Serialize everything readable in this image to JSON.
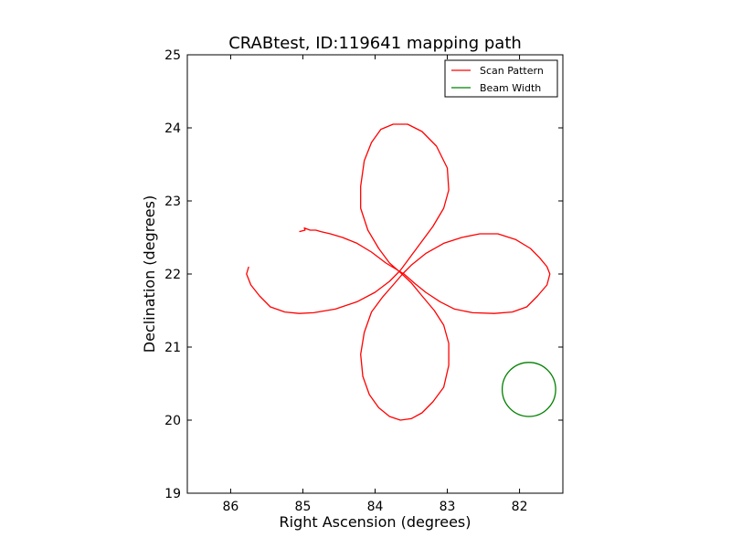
{
  "chart_data": {
    "type": "line",
    "title": "CRABtest, ID:119641 mapping path",
    "xlabel": "Right Ascension (degrees)",
    "ylabel": "Declination (degrees)",
    "xlim": [
      86.6,
      81.4
    ],
    "ylim": [
      19,
      25
    ],
    "xticks": [
      86,
      85,
      84,
      83,
      82
    ],
    "yticks": [
      19,
      20,
      21,
      22,
      23,
      24,
      25
    ],
    "grid": false,
    "legend": {
      "position": "top-right",
      "entries": [
        "Scan Pattern",
        "Beam Width"
      ]
    },
    "series": [
      {
        "name": "Scan Pattern",
        "color": "#ff0000",
        "points": [
          [
            85.05,
            22.58
          ],
          [
            84.97,
            22.6
          ],
          [
            84.98,
            22.63
          ],
          [
            84.9,
            22.6
          ],
          [
            84.82,
            22.6
          ],
          [
            84.75,
            22.58
          ],
          [
            84.62,
            22.55
          ],
          [
            84.45,
            22.5
          ],
          [
            84.25,
            22.42
          ],
          [
            84.05,
            22.3
          ],
          [
            83.85,
            22.15
          ],
          [
            83.6,
            22.0
          ],
          [
            83.45,
            21.87
          ],
          [
            83.3,
            21.75
          ],
          [
            83.1,
            21.62
          ],
          [
            82.9,
            21.52
          ],
          [
            82.65,
            21.47
          ],
          [
            82.35,
            21.46
          ],
          [
            82.1,
            21.48
          ],
          [
            81.9,
            21.55
          ],
          [
            81.75,
            21.7
          ],
          [
            81.62,
            21.85
          ],
          [
            81.58,
            22.0
          ],
          [
            81.62,
            22.1
          ],
          [
            81.72,
            22.22
          ],
          [
            81.85,
            22.35
          ],
          [
            82.05,
            22.47
          ],
          [
            82.3,
            22.55
          ],
          [
            82.55,
            22.55
          ],
          [
            82.8,
            22.5
          ],
          [
            83.05,
            22.42
          ],
          [
            83.3,
            22.28
          ],
          [
            83.5,
            22.12
          ],
          [
            83.62,
            22.0
          ],
          [
            83.75,
            21.85
          ],
          [
            83.9,
            21.68
          ],
          [
            84.05,
            21.48
          ],
          [
            84.15,
            21.2
          ],
          [
            84.2,
            20.9
          ],
          [
            84.17,
            20.6
          ],
          [
            84.08,
            20.35
          ],
          [
            83.95,
            20.17
          ],
          [
            83.8,
            20.05
          ],
          [
            83.65,
            20.0
          ],
          [
            83.5,
            20.02
          ],
          [
            83.35,
            20.1
          ],
          [
            83.2,
            20.25
          ],
          [
            83.05,
            20.45
          ],
          [
            82.98,
            20.75
          ],
          [
            82.98,
            21.05
          ],
          [
            83.05,
            21.3
          ],
          [
            83.18,
            21.5
          ],
          [
            83.35,
            21.7
          ],
          [
            83.5,
            21.88
          ],
          [
            83.65,
            22.02
          ],
          [
            83.8,
            22.15
          ],
          [
            83.95,
            22.35
          ],
          [
            84.1,
            22.6
          ],
          [
            84.2,
            22.9
          ],
          [
            84.2,
            23.2
          ],
          [
            84.15,
            23.55
          ],
          [
            84.05,
            23.8
          ],
          [
            83.92,
            23.98
          ],
          [
            83.75,
            24.05
          ],
          [
            83.55,
            24.05
          ],
          [
            83.35,
            23.95
          ],
          [
            83.15,
            23.75
          ],
          [
            83.0,
            23.45
          ],
          [
            82.98,
            23.15
          ],
          [
            83.05,
            22.9
          ],
          [
            83.2,
            22.65
          ],
          [
            83.35,
            22.45
          ],
          [
            83.5,
            22.25
          ],
          [
            83.65,
            22.05
          ],
          [
            83.8,
            21.9
          ],
          [
            84.0,
            21.75
          ],
          [
            84.25,
            21.62
          ],
          [
            84.55,
            21.52
          ],
          [
            84.85,
            21.47
          ],
          [
            85.05,
            21.46
          ],
          [
            85.25,
            21.48
          ],
          [
            85.45,
            21.55
          ],
          [
            85.6,
            21.7
          ],
          [
            85.72,
            21.85
          ],
          [
            85.78,
            22.0
          ],
          [
            85.75,
            22.1
          ]
        ]
      },
      {
        "name": "Beam Width",
        "color": "#008000",
        "shape": "circle",
        "center": [
          81.87,
          20.42
        ],
        "radius": 0.37
      }
    ]
  }
}
